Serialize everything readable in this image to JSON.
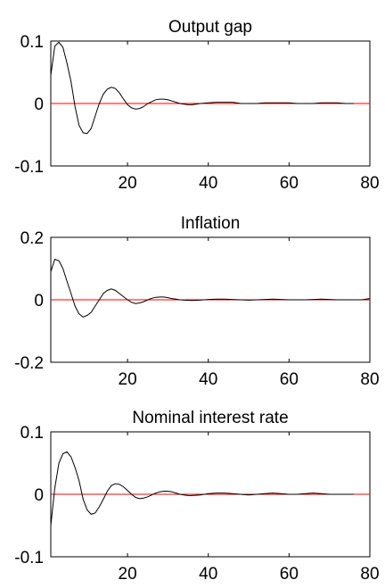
{
  "chart_data": [
    {
      "type": "line",
      "title": "Output gap",
      "xlabel": "",
      "ylabel": "",
      "xlim": [
        1,
        80
      ],
      "ylim": [
        -0.1,
        0.1
      ],
      "x_ticks": [
        "20",
        "40",
        "60",
        "80"
      ],
      "y_ticks": [
        "0.1",
        "0",
        "-0.1"
      ],
      "grid": false,
      "colors": {
        "series": "#000000",
        "zero_line": "#ff0000"
      },
      "series": [
        {
          "x": [
            1,
            2,
            3,
            4,
            5,
            6,
            7,
            8,
            9,
            10,
            11,
            12,
            13,
            14,
            15,
            16,
            17,
            18,
            19,
            20,
            21,
            22,
            23,
            24,
            25,
            26,
            27,
            28,
            29,
            30,
            31,
            32,
            33,
            34,
            35,
            36,
            37,
            38,
            40,
            42,
            44,
            46,
            47,
            48,
            50,
            52,
            54,
            56,
            58,
            60,
            62,
            64,
            66,
            68,
            70,
            72,
            74,
            76
          ],
          "values": [
            0.045,
            0.092,
            0.098,
            0.09,
            0.065,
            0.035,
            -0.005,
            -0.035,
            -0.047,
            -0.048,
            -0.04,
            -0.02,
            0.0,
            0.015,
            0.023,
            0.026,
            0.024,
            0.017,
            0.007,
            -0.002,
            -0.007,
            -0.009,
            -0.008,
            -0.005,
            0.0,
            0.003,
            0.006,
            0.007,
            0.007,
            0.006,
            0.004,
            0.002,
            0.0,
            -0.001,
            -0.002,
            -0.002,
            -0.001,
            0.0,
            0.001,
            0.002,
            0.002,
            0.002,
            0.001,
            0.0,
            0.0,
            0.0,
            0.001,
            0.001,
            0.001,
            0.001,
            0.0,
            0.0,
            0.0,
            0.001,
            0.001,
            0.001,
            0.0,
            0.0
          ]
        }
      ]
    },
    {
      "type": "line",
      "title": "Inflation",
      "xlabel": "",
      "ylabel": "",
      "xlim": [
        1,
        80
      ],
      "ylim": [
        -0.2,
        0.2
      ],
      "x_ticks": [
        "20",
        "40",
        "60",
        "80"
      ],
      "y_ticks": [
        "0.2",
        "0",
        "-0.2"
      ],
      "grid": false,
      "colors": {
        "series": "#000000",
        "zero_line": "#ff0000"
      },
      "series": [
        {
          "x": [
            1,
            2,
            3,
            4,
            5,
            6,
            7,
            8,
            9,
            10,
            11,
            12,
            13,
            14,
            15,
            16,
            17,
            18,
            19,
            20,
            21,
            22,
            23,
            24,
            25,
            26,
            27,
            28,
            29,
            30,
            31,
            32,
            33,
            34,
            36,
            38,
            40,
            42,
            44,
            46,
            48,
            50,
            52,
            54,
            56,
            58,
            60,
            62,
            64,
            66,
            68,
            70,
            72,
            74,
            76,
            78,
            80
          ],
          "values": [
            0.09,
            0.13,
            0.125,
            0.1,
            0.06,
            0.02,
            -0.02,
            -0.045,
            -0.055,
            -0.05,
            -0.04,
            -0.02,
            0.0,
            0.02,
            0.03,
            0.035,
            0.03,
            0.02,
            0.01,
            0.0,
            -0.008,
            -0.012,
            -0.01,
            -0.006,
            0.0,
            0.005,
            0.008,
            0.009,
            0.009,
            0.007,
            0.004,
            0.002,
            0.0,
            -0.001,
            -0.002,
            -0.001,
            0.001,
            0.002,
            0.002,
            0.001,
            0.0,
            -0.001,
            0.0,
            0.001,
            0.002,
            0.001,
            0.0,
            0.0,
            0.0,
            0.001,
            0.002,
            0.001,
            0.0,
            0.0,
            0.0,
            0.0,
            0.004
          ]
        }
      ]
    },
    {
      "type": "line",
      "title": "Nominal interest rate",
      "xlabel": "",
      "ylabel": "",
      "xlim": [
        1,
        80
      ],
      "ylim": [
        -0.1,
        0.1
      ],
      "x_ticks": [
        "20",
        "40",
        "60",
        "80"
      ],
      "y_ticks": [
        "0.1",
        "0",
        "-0.1"
      ],
      "grid": false,
      "colors": {
        "series": "#000000",
        "zero_line": "#ff0000"
      },
      "series": [
        {
          "x": [
            1,
            2,
            3,
            4,
            5,
            6,
            7,
            8,
            9,
            10,
            11,
            12,
            13,
            14,
            15,
            16,
            17,
            18,
            19,
            20,
            21,
            22,
            23,
            24,
            25,
            26,
            27,
            28,
            29,
            30,
            31,
            32,
            33,
            34,
            35,
            36,
            38,
            40,
            42,
            44,
            46,
            48,
            50,
            52,
            54,
            56,
            58,
            60,
            62,
            64,
            66,
            68,
            70,
            72,
            74,
            76
          ],
          "values": [
            -0.05,
            0.01,
            0.05,
            0.065,
            0.068,
            0.06,
            0.043,
            0.022,
            -0.008,
            -0.025,
            -0.032,
            -0.03,
            -0.02,
            -0.008,
            0.005,
            0.014,
            0.017,
            0.016,
            0.012,
            0.006,
            0.0,
            -0.005,
            -0.007,
            -0.006,
            -0.004,
            -0.001,
            0.002,
            0.004,
            0.005,
            0.005,
            0.004,
            0.002,
            0.0,
            -0.001,
            -0.002,
            -0.002,
            -0.001,
            0.001,
            0.002,
            0.002,
            0.001,
            0.0,
            -0.001,
            0.0,
            0.001,
            0.002,
            0.001,
            0.0,
            0.0,
            0.001,
            0.002,
            0.001,
            0.0,
            0.0,
            0.0,
            0.0
          ]
        }
      ]
    }
  ]
}
